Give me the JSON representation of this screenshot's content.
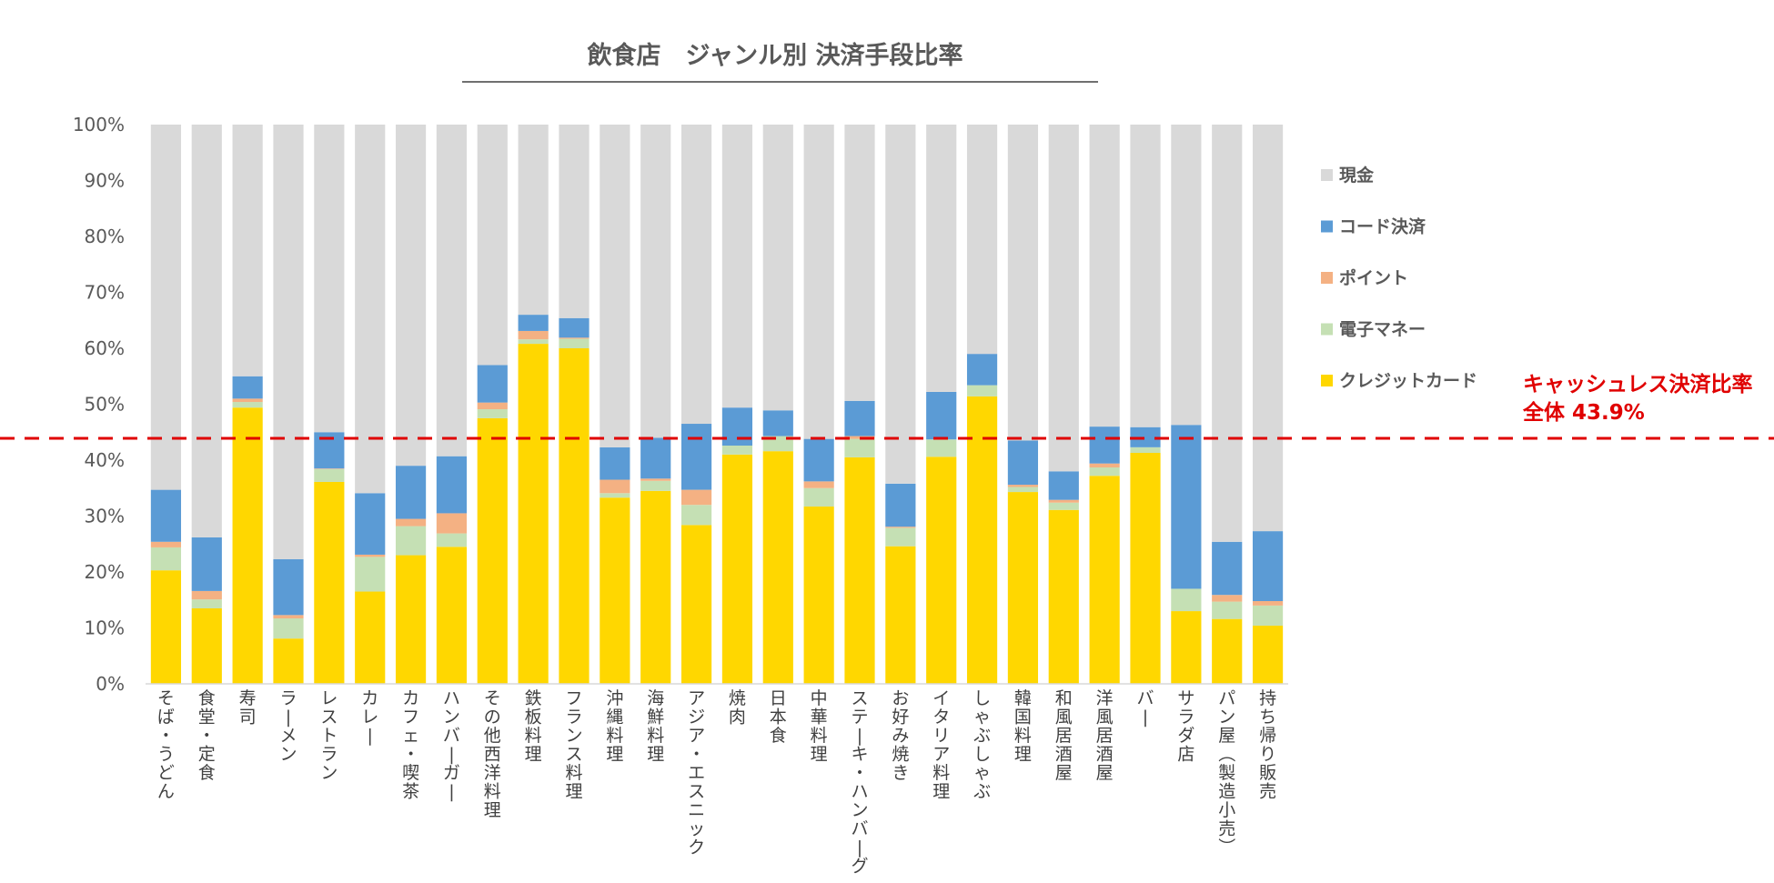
{
  "chart_data": {
    "type": "bar",
    "stacked": true,
    "title": "飲食店　ジャンル別 決済手段比率",
    "xlabel": "",
    "ylabel": "",
    "ylim": [
      0,
      100
    ],
    "yticks": [
      "0%",
      "10%",
      "20%",
      "30%",
      "40%",
      "50%",
      "60%",
      "70%",
      "80%",
      "90%",
      "100%"
    ],
    "categories": [
      "そば・うどん",
      "食堂・定食",
      "寿司",
      "ラーメン",
      "レストラン",
      "カレー",
      "カフェ・喫茶",
      "ハンバーガー",
      "その他西洋料理",
      "鉄板料理",
      "フランス料理",
      "沖縄料理",
      "海鮮料理",
      "アジア・エスニック",
      "焼肉",
      "日本食",
      "中華料理",
      "ステーキ・ハンバーグ",
      "お好み焼き",
      "イタリア料理",
      "しゃぶしゃぶ",
      "韓国料理",
      "和風居酒屋",
      "洋風居酒屋",
      "バー",
      "サラダ店",
      "パン屋(製造小売)",
      "持ち帰り販売"
    ],
    "series": [
      {
        "name": "クレジットカード",
        "color": "#ffd700",
        "values": [
          20.3,
          13.5,
          49.4,
          8.1,
          36.1,
          16.5,
          23.0,
          24.5,
          47.5,
          60.8,
          60.0,
          33.3,
          34.5,
          28.4,
          41.0,
          41.6,
          31.7,
          40.5,
          24.6,
          40.6,
          51.4,
          34.3,
          31.1,
          37.2,
          41.3,
          13.0,
          11.6,
          10.4
        ]
      },
      {
        "name": "電子マネー",
        "color": "#c5e0b4",
        "values": [
          4.1,
          1.6,
          1.0,
          3.6,
          2.3,
          6.2,
          5.2,
          2.4,
          1.6,
          0.8,
          1.7,
          0.8,
          1.8,
          3.6,
          1.6,
          2.7,
          3.3,
          3.3,
          3.3,
          3.1,
          2.0,
          0.9,
          1.3,
          1.5,
          1.0,
          4.0,
          3.1,
          3.6
        ]
      },
      {
        "name": "ポイント",
        "color": "#f4b183",
        "values": [
          1.0,
          1.5,
          0.6,
          0.6,
          0.1,
          0.4,
          1.3,
          3.6,
          1.2,
          1.5,
          0.2,
          2.4,
          0.4,
          2.7,
          0.0,
          0.0,
          1.2,
          0.5,
          0.2,
          0.0,
          0.0,
          0.4,
          0.5,
          0.7,
          0.0,
          0.0,
          1.2,
          0.8
        ]
      },
      {
        "name": "コード決済",
        "color": "#5b9bd5",
        "values": [
          9.3,
          9.6,
          4.0,
          10.0,
          6.5,
          11.0,
          9.5,
          10.2,
          6.7,
          2.9,
          3.5,
          5.8,
          7.3,
          11.8,
          6.8,
          4.6,
          7.6,
          6.3,
          7.7,
          8.5,
          5.6,
          7.9,
          5.1,
          6.6,
          3.6,
          29.3,
          9.5,
          12.5
        ]
      },
      {
        "name": "現金",
        "color": "#d9d9d9",
        "values": [
          65.3,
          73.8,
          45.0,
          77.7,
          55.0,
          65.9,
          61.0,
          59.3,
          43.0,
          34.0,
          34.6,
          57.7,
          56.0,
          53.5,
          50.6,
          51.1,
          56.2,
          49.4,
          64.2,
          47.8,
          41.0,
          56.5,
          62.0,
          54.0,
          54.1,
          53.7,
          74.6,
          72.7
        ]
      }
    ],
    "legend": [
      "現金",
      "コード決済",
      "ポイント",
      "電子マネー",
      "クレジットカード"
    ],
    "legend_position": "right",
    "reference_line": {
      "value": 43.9,
      "style": "dashed",
      "color": "#e00000"
    },
    "annotation": [
      "キャッシュレス決済比率",
      "全体 43.9%"
    ]
  }
}
